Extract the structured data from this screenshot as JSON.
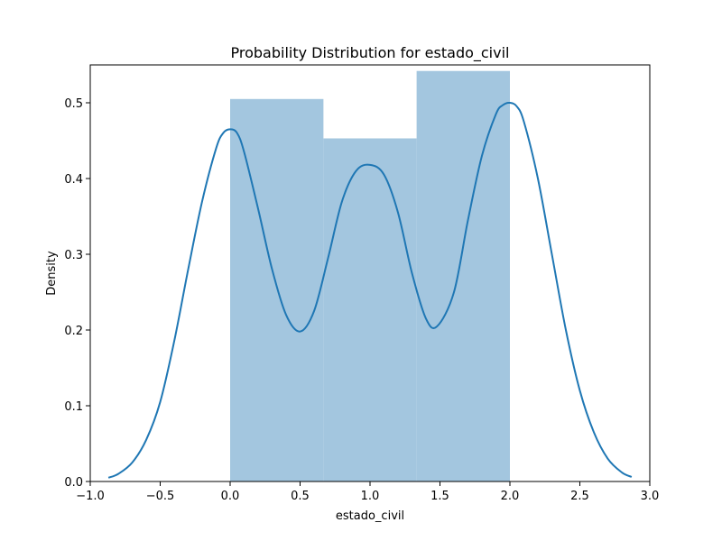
{
  "chart_data": {
    "type": "bar",
    "title": "Probability Distribution for estado_civil",
    "xlabel": "estado_civil",
    "ylabel": "Density",
    "xlim": [
      -1.0,
      3.0
    ],
    "ylim": [
      0.0,
      0.55
    ],
    "xticks": [
      -1.0,
      -0.5,
      0.0,
      0.5,
      1.0,
      1.5,
      2.0,
      2.5,
      3.0
    ],
    "xtick_labels": [
      "−1.0",
      "−0.5",
      "0.0",
      "0.5",
      "1.0",
      "1.5",
      "2.0",
      "2.5",
      "3.0"
    ],
    "yticks": [
      0.0,
      0.1,
      0.2,
      0.3,
      0.4,
      0.5
    ],
    "ytick_labels": [
      "0.0",
      "0.1",
      "0.2",
      "0.3",
      "0.4",
      "0.5"
    ],
    "grid": false,
    "histogram": {
      "bins": [
        {
          "x0": 0.0,
          "x1": 0.667,
          "density": 0.505
        },
        {
          "x0": 0.667,
          "x1": 1.333,
          "density": 0.453
        },
        {
          "x0": 1.333,
          "x1": 2.0,
          "density": 0.542
        }
      ],
      "color": "#a3c6df"
    },
    "kde": {
      "color": "#1f77b4",
      "points": [
        [
          -0.87,
          0.005
        ],
        [
          -0.8,
          0.01
        ],
        [
          -0.7,
          0.025
        ],
        [
          -0.6,
          0.055
        ],
        [
          -0.5,
          0.105
        ],
        [
          -0.4,
          0.185
        ],
        [
          -0.3,
          0.28
        ],
        [
          -0.2,
          0.37
        ],
        [
          -0.1,
          0.44
        ],
        [
          -0.05,
          0.46
        ],
        [
          0.0,
          0.465
        ],
        [
          0.05,
          0.46
        ],
        [
          0.1,
          0.435
        ],
        [
          0.2,
          0.36
        ],
        [
          0.3,
          0.28
        ],
        [
          0.4,
          0.22
        ],
        [
          0.5,
          0.198
        ],
        [
          0.6,
          0.225
        ],
        [
          0.7,
          0.295
        ],
        [
          0.8,
          0.37
        ],
        [
          0.9,
          0.41
        ],
        [
          1.0,
          0.418
        ],
        [
          1.1,
          0.405
        ],
        [
          1.2,
          0.355
        ],
        [
          1.3,
          0.275
        ],
        [
          1.4,
          0.215
        ],
        [
          1.48,
          0.205
        ],
        [
          1.6,
          0.25
        ],
        [
          1.7,
          0.345
        ],
        [
          1.8,
          0.43
        ],
        [
          1.9,
          0.485
        ],
        [
          1.95,
          0.497
        ],
        [
          2.0,
          0.5
        ],
        [
          2.05,
          0.495
        ],
        [
          2.1,
          0.475
        ],
        [
          2.2,
          0.4
        ],
        [
          2.3,
          0.3
        ],
        [
          2.4,
          0.2
        ],
        [
          2.5,
          0.12
        ],
        [
          2.6,
          0.065
        ],
        [
          2.7,
          0.03
        ],
        [
          2.8,
          0.012
        ],
        [
          2.87,
          0.006
        ]
      ]
    }
  }
}
